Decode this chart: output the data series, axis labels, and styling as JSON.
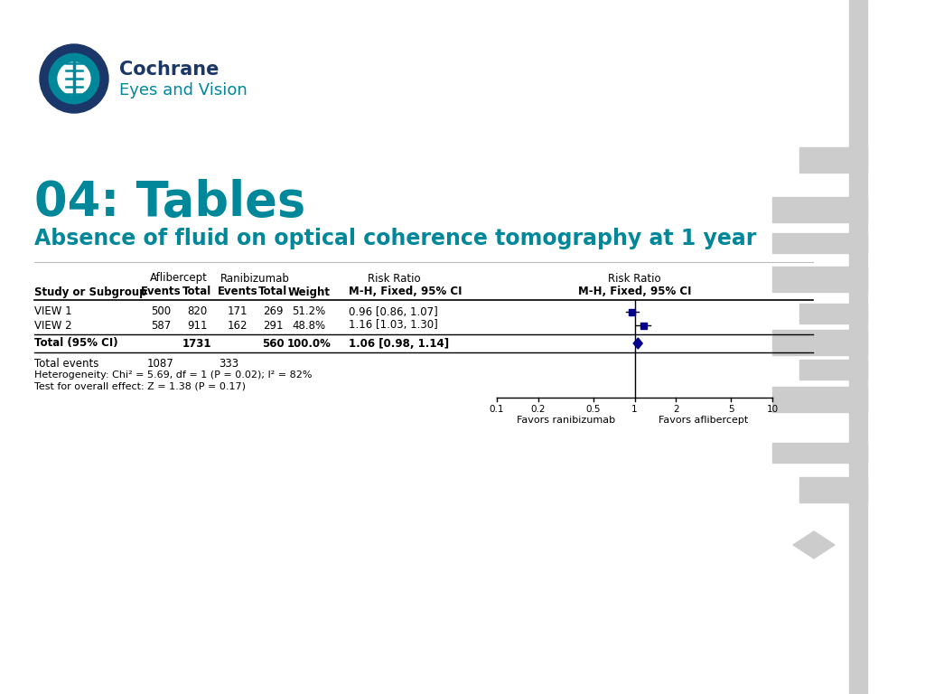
{
  "title": "04: Tables",
  "subtitle": "Absence of fluid on optical coherence tomography at 1 year",
  "title_color": "#00879A",
  "subtitle_color": "#00879A",
  "cochrane_text1": "Cochrane",
  "cochrane_text2": "Eyes and Vision",
  "bg_color": "#FFFFFF",
  "sidebar_color": "#CCCCCC",
  "col_header_group1": "Aflibercept",
  "col_header_group2": "Ranibizumab",
  "col_header_rr": "Risk Ratio",
  "col_header_rr2": "Risk Ratio",
  "rows": [
    {
      "study": "VIEW 1",
      "ev1": 500,
      "tot1": 820,
      "ev2": 171,
      "tot2": 269,
      "weight": "51.2%",
      "rr": "0.96 [0.86, 1.07]",
      "rr_val": 0.96,
      "ci_low": 0.86,
      "ci_high": 1.07
    },
    {
      "study": "VIEW 2",
      "ev1": 587,
      "tot1": 911,
      "ev2": 162,
      "tot2": 291,
      "weight": "48.8%",
      "rr": "1.16 [1.03, 1.30]",
      "rr_val": 1.16,
      "ci_low": 1.03,
      "ci_high": 1.3
    }
  ],
  "total_row": {
    "label": "Total (95% CI)",
    "tot1": 1731,
    "tot2": 560,
    "weight": "100.0%",
    "rr": "1.06 [0.98, 1.14]",
    "rr_val": 1.06,
    "ci_low": 0.98,
    "ci_high": 1.14
  },
  "total_events1": 1087,
  "total_events2": 333,
  "heterogeneity": "Heterogeneity: Chi² = 5.69, df = 1 (P = 0.02); I² = 82%",
  "overall_effect": "Test for overall effect: Z = 1.38 (P = 0.17)",
  "forest_xticks": [
    0.1,
    0.2,
    0.5,
    1,
    2,
    5,
    10
  ],
  "favors_left": "Favors ranibizumab",
  "favors_right": "Favors aflibercept",
  "box_color": "#00008B",
  "diamond_color": "#00008B",
  "line_color": "#000000",
  "logo_dark": "#1B3668",
  "logo_teal": "#00879A"
}
